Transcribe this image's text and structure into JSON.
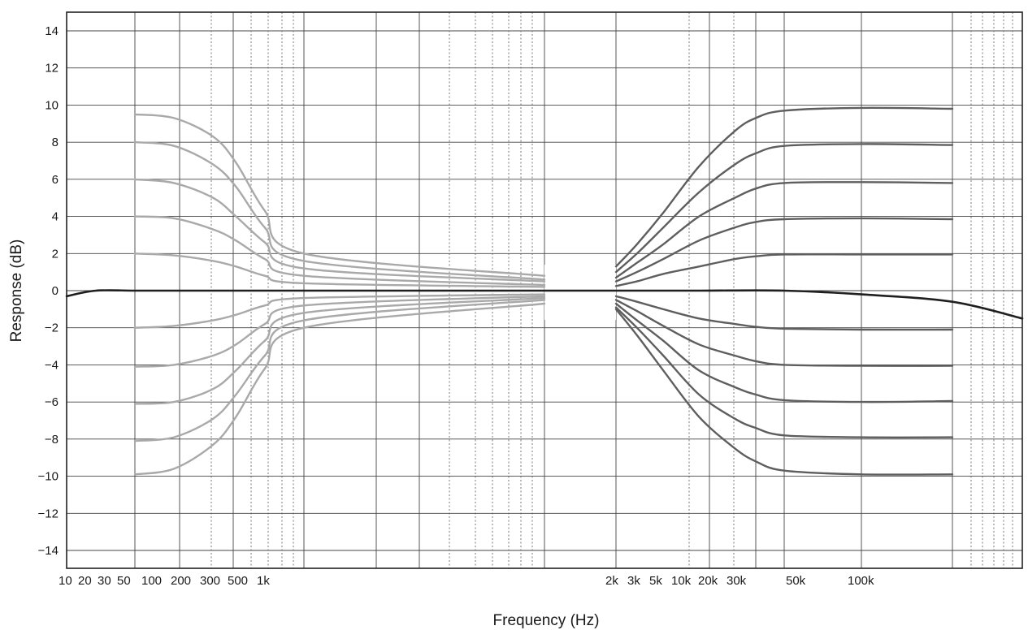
{
  "chart_data": {
    "type": "line",
    "title": "",
    "xlabel": "Frequency (Hz)",
    "ylabel": "Response (dB)",
    "ylim": [
      -15,
      15
    ],
    "grid": true,
    "legend": "none",
    "yticks": [
      14,
      12,
      10,
      8,
      6,
      4,
      2,
      0,
      -2,
      -4,
      -6,
      -8,
      -10,
      -12,
      -14
    ],
    "ytick_labels": [
      "14",
      "12",
      "10",
      "8",
      "6",
      "4",
      "2",
      "0",
      "−2",
      "−4",
      "−6",
      "−8",
      "−10",
      "−12",
      "−14"
    ],
    "xtick_labels": [
      {
        "label": "10",
        "hz": 10
      },
      {
        "label": "20",
        "hz": 20
      },
      {
        "label": "30",
        "hz": 30
      },
      {
        "label": "50",
        "hz": 50
      },
      {
        "label": "100",
        "hz": 100
      },
      {
        "label": "200",
        "hz": 200
      },
      {
        "label": "300",
        "hz": 300
      },
      {
        "label": "500",
        "hz": 500
      },
      {
        "label": "1k",
        "hz": 1000
      },
      {
        "label": "2k",
        "hz": 2000
      },
      {
        "label": "3k",
        "hz": 3000
      },
      {
        "label": "5k",
        "hz": 5000
      },
      {
        "label": "10k",
        "hz": 10000
      },
      {
        "label": "20k",
        "hz": 20000
      },
      {
        "label": "30k",
        "hz": 30000
      },
      {
        "label": "50k",
        "hz": 50000
      },
      {
        "label": "100k",
        "hz": 100000
      }
    ],
    "series": [
      {
        "group": "flat",
        "color": "#1f1f1f",
        "x": [
          10,
          20,
          50,
          100,
          1000,
          2000,
          10000,
          50000,
          100000,
          150000,
          200000
        ],
        "y": [
          -0.3,
          0,
          0,
          0,
          0,
          0,
          0,
          0,
          -0.2,
          -0.6,
          -1.5
        ]
      },
      {
        "group": "bass",
        "color": "#a9a9a9",
        "x": [
          50,
          100,
          200,
          300,
          500,
          1000,
          1500
        ],
        "y": [
          9.5,
          9.3,
          8.3,
          6.9,
          4.3,
          2.0,
          0.8
        ]
      },
      {
        "group": "bass",
        "color": "#a9a9a9",
        "x": [
          50,
          100,
          200,
          300,
          500,
          1000,
          1500
        ],
        "y": [
          8.0,
          7.8,
          6.8,
          5.6,
          3.4,
          1.6,
          0.6
        ]
      },
      {
        "group": "bass",
        "color": "#a9a9a9",
        "x": [
          50,
          100,
          200,
          300,
          500,
          1000,
          1500
        ],
        "y": [
          6.0,
          5.8,
          5.0,
          4.0,
          2.6,
          1.2,
          0.5
        ]
      },
      {
        "group": "bass",
        "color": "#a9a9a9",
        "x": [
          50,
          100,
          200,
          300,
          500,
          1000,
          1500
        ],
        "y": [
          4.0,
          3.9,
          3.3,
          2.7,
          1.7,
          0.8,
          0.3
        ]
      },
      {
        "group": "bass",
        "color": "#a9a9a9",
        "x": [
          50,
          100,
          200,
          300,
          500,
          1000,
          1500
        ],
        "y": [
          2.0,
          1.9,
          1.6,
          1.3,
          0.8,
          0.4,
          0.2
        ]
      },
      {
        "group": "bass",
        "color": "#a9a9a9",
        "x": [
          50,
          100,
          200,
          300,
          500,
          1000,
          1500
        ],
        "y": [
          -2.0,
          -1.9,
          -1.6,
          -1.3,
          -0.8,
          -0.4,
          -0.2
        ]
      },
      {
        "group": "bass",
        "color": "#a9a9a9",
        "x": [
          50,
          100,
          200,
          300,
          500,
          1000,
          1500
        ],
        "y": [
          -4.1,
          -4.0,
          -3.5,
          -2.9,
          -1.8,
          -0.8,
          -0.3
        ]
      },
      {
        "group": "bass",
        "color": "#a9a9a9",
        "x": [
          50,
          100,
          200,
          300,
          500,
          1000,
          1500
        ],
        "y": [
          -6.1,
          -6.0,
          -5.3,
          -4.3,
          -2.7,
          -1.2,
          -0.4
        ]
      },
      {
        "group": "bass",
        "color": "#a9a9a9",
        "x": [
          50,
          100,
          200,
          300,
          500,
          1000,
          1500
        ],
        "y": [
          -8.1,
          -7.9,
          -6.9,
          -5.6,
          -3.5,
          -1.6,
          -0.5
        ]
      },
      {
        "group": "bass",
        "color": "#a9a9a9",
        "x": [
          50,
          100,
          200,
          300,
          500,
          1000,
          1500
        ],
        "y": [
          -9.9,
          -9.6,
          -8.3,
          -6.8,
          -4.2,
          -2.0,
          -0.7
        ]
      },
      {
        "group": "treble",
        "color": "#5e5e5e",
        "x": [
          2000,
          3000,
          5000,
          10000,
          20000,
          30000,
          50000,
          100000,
          150000
        ],
        "y": [
          1.3,
          2.5,
          4.2,
          6.7,
          8.6,
          9.3,
          9.7,
          9.85,
          9.8
        ]
      },
      {
        "group": "treble",
        "color": "#5e5e5e",
        "x": [
          2000,
          3000,
          5000,
          10000,
          20000,
          30000,
          50000,
          100000,
          150000
        ],
        "y": [
          1.0,
          2.0,
          3.4,
          5.3,
          6.8,
          7.4,
          7.8,
          7.9,
          7.85
        ]
      },
      {
        "group": "treble",
        "color": "#5e5e5e",
        "x": [
          2000,
          3000,
          5000,
          10000,
          20000,
          30000,
          50000,
          100000,
          150000
        ],
        "y": [
          0.7,
          1.5,
          2.5,
          4.0,
          5.0,
          5.5,
          5.8,
          5.85,
          5.8
        ]
      },
      {
        "group": "treble",
        "color": "#5e5e5e",
        "x": [
          2000,
          3000,
          5000,
          10000,
          20000,
          30000,
          50000,
          100000,
          150000
        ],
        "y": [
          0.5,
          1.0,
          1.7,
          2.7,
          3.4,
          3.7,
          3.85,
          3.9,
          3.85
        ]
      },
      {
        "group": "treble",
        "color": "#5e5e5e",
        "x": [
          2000,
          3000,
          5000,
          10000,
          20000,
          30000,
          50000,
          100000,
          150000
        ],
        "y": [
          0.25,
          0.5,
          0.9,
          1.3,
          1.7,
          1.85,
          1.95,
          1.95,
          1.95
        ]
      },
      {
        "group": "treble",
        "color": "#5e5e5e",
        "x": [
          2000,
          3000,
          5000,
          10000,
          20000,
          30000,
          50000,
          100000,
          150000
        ],
        "y": [
          -0.3,
          -0.6,
          -1.0,
          -1.5,
          -1.8,
          -1.95,
          -2.05,
          -2.1,
          -2.1
        ]
      },
      {
        "group": "treble",
        "color": "#5e5e5e",
        "x": [
          2000,
          3000,
          5000,
          10000,
          20000,
          30000,
          50000,
          100000,
          150000
        ],
        "y": [
          -0.5,
          -1.1,
          -1.9,
          -2.9,
          -3.5,
          -3.8,
          -4.0,
          -4.05,
          -4.05
        ]
      },
      {
        "group": "treble",
        "color": "#5e5e5e",
        "x": [
          2000,
          3000,
          5000,
          10000,
          20000,
          30000,
          50000,
          100000,
          150000
        ],
        "y": [
          -0.7,
          -1.6,
          -2.7,
          -4.3,
          -5.2,
          -5.6,
          -5.9,
          -6.0,
          -5.95
        ]
      },
      {
        "group": "treble",
        "color": "#5e5e5e",
        "x": [
          2000,
          3000,
          5000,
          10000,
          20000,
          30000,
          50000,
          100000,
          150000
        ],
        "y": [
          -0.9,
          -2.0,
          -3.5,
          -5.6,
          -6.9,
          -7.4,
          -7.8,
          -7.9,
          -7.9
        ]
      },
      {
        "group": "treble",
        "color": "#5e5e5e",
        "x": [
          2000,
          3000,
          5000,
          10000,
          20000,
          30000,
          50000,
          100000,
          150000
        ],
        "y": [
          -1.0,
          -2.4,
          -4.3,
          -6.8,
          -8.5,
          -9.2,
          -9.7,
          -9.9,
          -9.9
        ]
      }
    ]
  },
  "colors": {
    "flat": "#1f1f1f",
    "bass": "#a9a9a9",
    "treble": "#5e5e5e",
    "grid": "#333333",
    "background": "#ffffff"
  }
}
